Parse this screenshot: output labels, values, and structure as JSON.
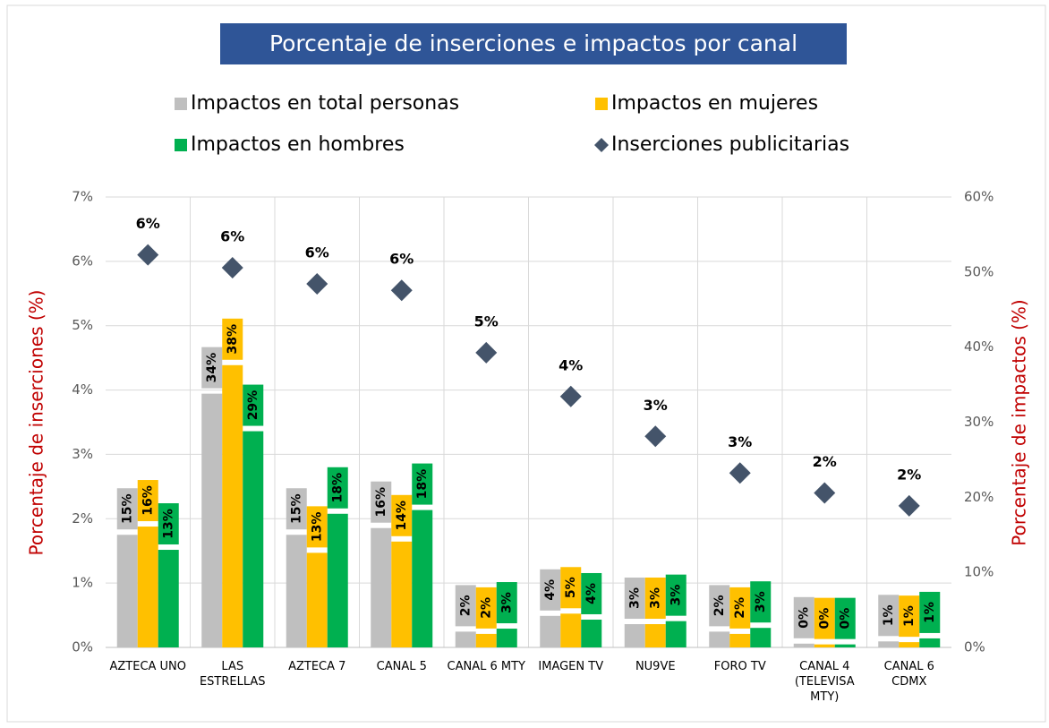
{
  "chart_data": {
    "type": "bar",
    "title": "Porcentaje de inserciones e impactos por canal",
    "ylabel": "Porcentaje de inserciones (%)",
    "y2label": "Porcentaje de impactos (%)",
    "categories": [
      "AZTECA UNO",
      "LAS ESTRELLAS",
      "AZTECA 7",
      "CANAL 5",
      "CANAL 6 MTY",
      "IMAGEN TV",
      "NU9VE",
      "FORO TV",
      "CANAL 4 (TELEVISA MTY)",
      "CANAL 6 CDMX"
    ],
    "series": [
      {
        "name": "Impactos en total personas",
        "type": "bar",
        "axis": "y2",
        "color": "#bfbfbf",
        "values": [
          15,
          33.8,
          15,
          15.9,
          2.1,
          4.2,
          3.1,
          2.1,
          0.5,
          0.8
        ],
        "value_labels": [
          "15%",
          "34%",
          "15%",
          "16%",
          "2%",
          "4%",
          "3%",
          "2%",
          "0%",
          "1%"
        ]
      },
      {
        "name": "Impactos en mujeres",
        "type": "bar",
        "axis": "y2",
        "color": "#ffc000",
        "values": [
          16.1,
          37.6,
          12.6,
          14.1,
          1.8,
          4.5,
          3.1,
          1.8,
          0.4,
          0.7
        ],
        "value_labels": [
          "16%",
          "38%",
          "13%",
          "14%",
          "2%",
          "5%",
          "3%",
          "2%",
          "0%",
          "1%"
        ]
      },
      {
        "name": "Impactos en hombres",
        "type": "bar",
        "axis": "y2",
        "color": "#00b050",
        "values": [
          13,
          28.8,
          17.8,
          18.3,
          2.5,
          3.7,
          3.5,
          2.6,
          0.4,
          1.2
        ],
        "value_labels": [
          "13%",
          "29%",
          "18%",
          "18%",
          "3%",
          "4%",
          "3%",
          "3%",
          "0%",
          "1%"
        ]
      },
      {
        "name": "Inserciones publicitarias",
        "type": "scatter",
        "axis": "y",
        "color": "#44546a",
        "values": [
          6.1,
          5.9,
          5.65,
          5.55,
          4.58,
          3.9,
          3.28,
          2.71,
          2.4,
          2.2
        ],
        "value_labels": [
          "6%",
          "6%",
          "6%",
          "6%",
          "5%",
          "4%",
          "3%",
          "3%",
          "2%",
          "2%"
        ]
      }
    ],
    "ylim": [
      0,
      7
    ],
    "yticks": [
      {
        "value": 0,
        "label": "0%"
      },
      {
        "value": 1,
        "label": "1%"
      },
      {
        "value": 2,
        "label": "2%"
      },
      {
        "value": 3,
        "label": "3%"
      },
      {
        "value": 4,
        "label": "4%"
      },
      {
        "value": 5,
        "label": "5%"
      },
      {
        "value": 6,
        "label": "6%"
      },
      {
        "value": 7,
        "label": "7%"
      }
    ],
    "y2lim": [
      0,
      60
    ],
    "y2ticks": [
      {
        "value": 0,
        "label": "0%"
      },
      {
        "value": 10,
        "label": "10%"
      },
      {
        "value": 20,
        "label": "20%"
      },
      {
        "value": 30,
        "label": "30%"
      },
      {
        "value": 40,
        "label": "40%"
      },
      {
        "value": 50,
        "label": "50%"
      },
      {
        "value": 60,
        "label": "60%"
      }
    ],
    "grid": true
  }
}
